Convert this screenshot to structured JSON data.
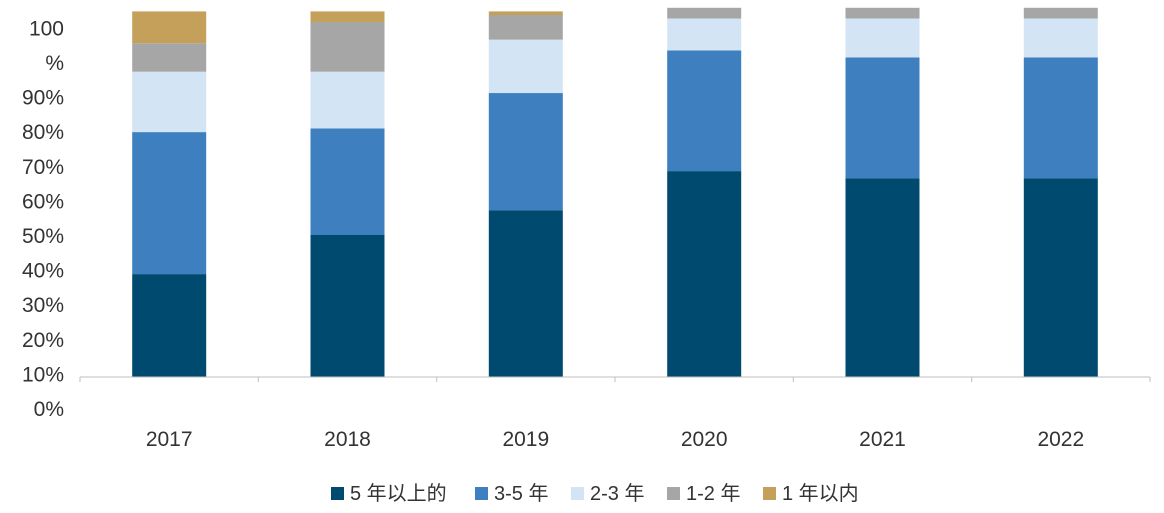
{
  "chart_data": {
    "type": "bar",
    "stacked": true,
    "categories": [
      "2017",
      "2018",
      "2019",
      "2020",
      "2021",
      "2022"
    ],
    "y_tick_labels": [
      "0%",
      "10%",
      "20%",
      "30%",
      "40%",
      "50%",
      "60%",
      "70%",
      "80%",
      "90%",
      "%",
      "100"
    ],
    "ylim": [
      0,
      100
    ],
    "grid": false,
    "legend_position": "bottom",
    "series": [
      {
        "name": "5 年以上的",
        "color": "#004A70",
        "values": [
          29,
          40,
          47,
          58,
          56,
          56
        ]
      },
      {
        "name": "3-5 年",
        "color": "#3D7FBF",
        "values": [
          40,
          30,
          33,
          34,
          34,
          34
        ]
      },
      {
        "name": "2-3 年",
        "color": "#D3E5F4",
        "values": [
          17,
          16,
          15,
          9,
          11,
          11
        ]
      },
      {
        "name": "1-2 年",
        "color": "#A6A6A6",
        "values": [
          8,
          14,
          7,
          3,
          3,
          3
        ]
      },
      {
        "name": "1 年以内",
        "color": "#C5A05A",
        "values": [
          9,
          3,
          1,
          0,
          0,
          0
        ]
      }
    ]
  }
}
